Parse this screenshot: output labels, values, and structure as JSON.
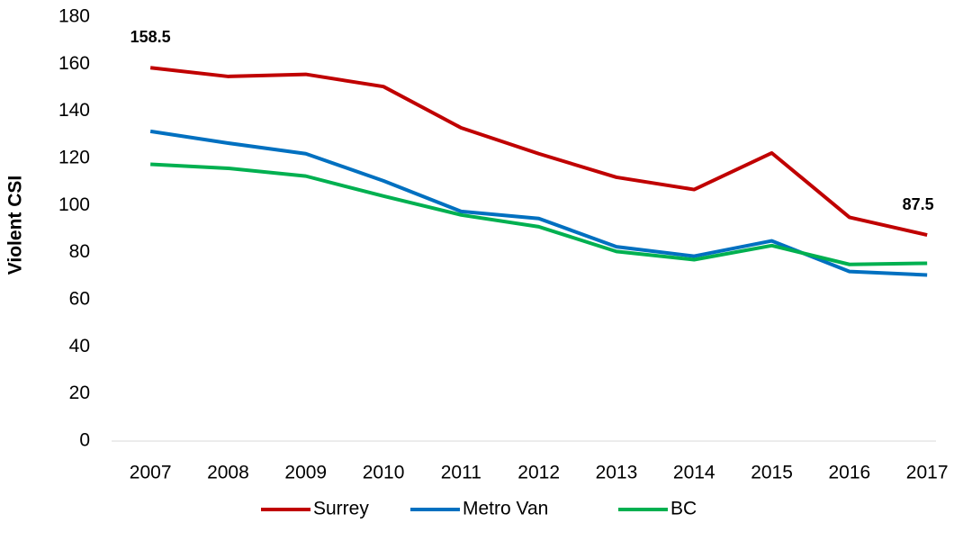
{
  "chart_data": {
    "type": "line",
    "y_label": "Violent CSI",
    "categories": [
      "2007",
      "2008",
      "2009",
      "2010",
      "2011",
      "2012",
      "2013",
      "2014",
      "2015",
      "2016",
      "2017"
    ],
    "series": [
      {
        "name": "Surrey",
        "color": "#c00000",
        "values": [
          158.5,
          154.8,
          155.7,
          150.5,
          133,
          122,
          112,
          106.8,
          122.3,
          95,
          87.5
        ],
        "value_labels": [
          "158.5",
          null,
          null,
          null,
          null,
          null,
          null,
          null,
          null,
          null,
          "87.5"
        ]
      },
      {
        "name": "Metro Van",
        "color": "#0070c0",
        "values": [
          131.5,
          126.5,
          122,
          110.5,
          97.5,
          94.5,
          82.5,
          78.5,
          85,
          72,
          70.5
        ]
      },
      {
        "name": "BC",
        "color": "#00b050",
        "values": [
          117.5,
          115.8,
          112.5,
          104,
          96,
          91,
          80.5,
          77,
          83,
          75,
          75.5
        ]
      }
    ],
    "ylim": [
      0,
      180
    ],
    "yticks": [
      0,
      20,
      40,
      60,
      80,
      100,
      120,
      140,
      160,
      180
    ],
    "grid": false,
    "legend": "bottom"
  }
}
